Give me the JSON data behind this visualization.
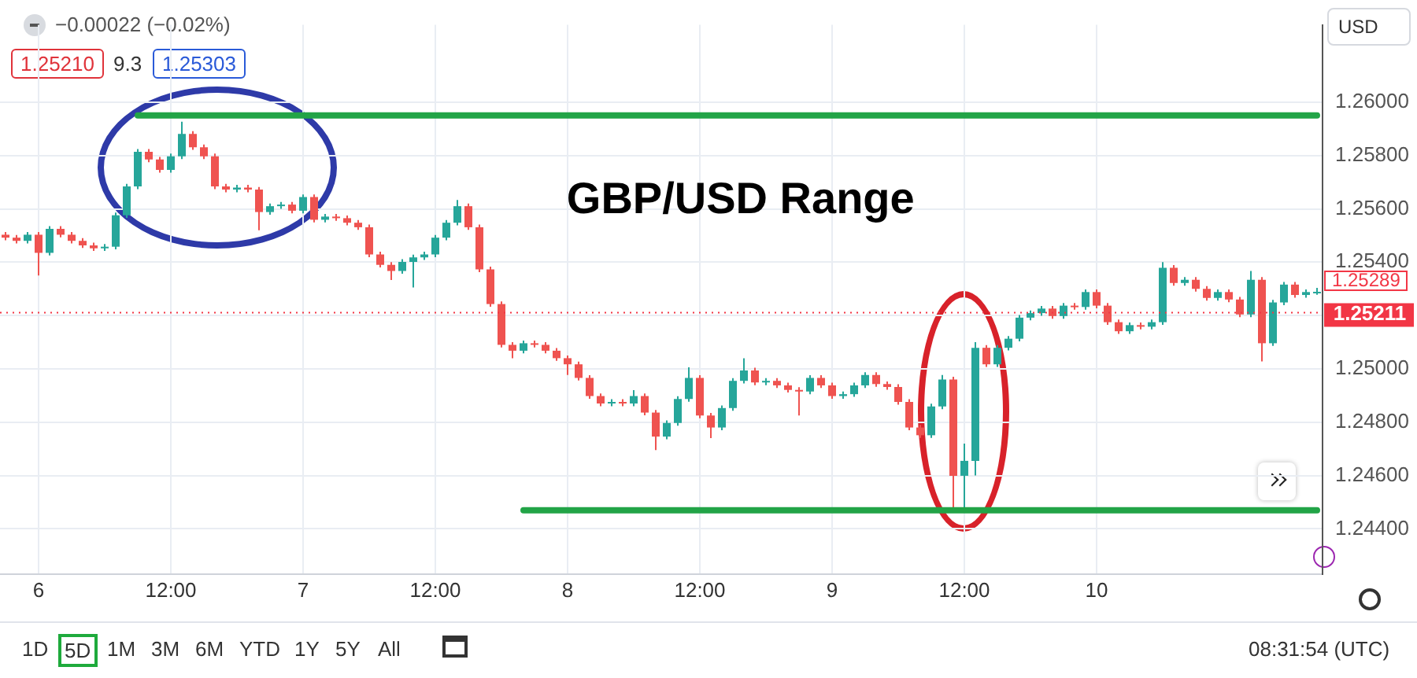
{
  "chart_data": {
    "type": "candlestick",
    "title": "GBP/USD Range",
    "categories": [
      null,
      null,
      null,
      "6",
      null,
      null,
      null,
      null,
      null,
      null,
      null,
      null,
      null,
      null,
      null,
      "12:00",
      null,
      null,
      null,
      null,
      null,
      null,
      null,
      null,
      null,
      null,
      null,
      "7",
      null,
      null,
      null,
      null,
      null,
      null,
      null,
      null,
      null,
      null,
      null,
      "12:00",
      null,
      null,
      null,
      null,
      null,
      null,
      null,
      null,
      null,
      null,
      null,
      "8",
      null,
      null,
      null,
      null,
      null,
      null,
      null,
      null,
      null,
      null,
      null,
      "12:00",
      null,
      null,
      null,
      null,
      null,
      null,
      null,
      null,
      null,
      null,
      null,
      "9",
      null,
      null,
      null,
      null,
      null,
      null,
      null,
      null,
      null,
      null,
      null,
      "12:00",
      null,
      null,
      null,
      null,
      null,
      null,
      null,
      null,
      null,
      null,
      null,
      "10",
      null,
      null,
      null,
      null,
      null,
      null,
      null,
      null,
      null,
      null,
      null,
      null,
      null,
      null,
      null,
      null,
      null,
      null,
      null,
      null
    ],
    "ohlc": [
      [
        1.25503,
        1.25513,
        1.25482,
        1.25492
      ],
      [
        1.25492,
        1.25502,
        1.2547,
        1.2548
      ],
      [
        1.2548,
        1.25513,
        1.2547,
        1.25503
      ],
      [
        1.25503,
        1.25513,
        1.2535,
        1.25435
      ],
      [
        1.25435,
        1.25535,
        1.25425,
        1.25525
      ],
      [
        1.25525,
        1.25535,
        1.25493,
        1.25503
      ],
      [
        1.25503,
        1.25513,
        1.2547,
        1.2548
      ],
      [
        1.2548,
        1.2549,
        1.25453,
        1.25463
      ],
      [
        1.25463,
        1.25473,
        1.25442,
        1.25452
      ],
      [
        1.25452,
        1.25468,
        1.25442,
        1.25458
      ],
      [
        1.25458,
        1.25586,
        1.25448,
        1.25576
      ],
      [
        1.25576,
        1.25694,
        1.25566,
        1.25684
      ],
      [
        1.25684,
        1.25824,
        1.25674,
        1.25814
      ],
      [
        1.25814,
        1.25824,
        1.25775,
        1.25785
      ],
      [
        1.25785,
        1.25795,
        1.25736,
        1.25746
      ],
      [
        1.25746,
        1.25807,
        1.25736,
        1.25797
      ],
      [
        1.25797,
        1.25927,
        1.25787,
        1.25881
      ],
      [
        1.25881,
        1.25891,
        1.25821,
        1.25831
      ],
      [
        1.25831,
        1.25841,
        1.25787,
        1.25797
      ],
      [
        1.25797,
        1.25807,
        1.25674,
        1.25684
      ],
      [
        1.25684,
        1.25694,
        1.25662,
        1.25672
      ],
      [
        1.25672,
        1.2569,
        1.25662,
        1.2568
      ],
      [
        1.2568,
        1.2569,
        1.25662,
        1.25672
      ],
      [
        1.25672,
        1.25682,
        1.2552,
        1.25588
      ],
      [
        1.25588,
        1.2562,
        1.25578,
        1.2561
      ],
      [
        1.2561,
        1.25626,
        1.256,
        1.25616
      ],
      [
        1.25616,
        1.25626,
        1.25583,
        1.25593
      ],
      [
        1.25593,
        1.25654,
        1.25583,
        1.25644
      ],
      [
        1.25644,
        1.25654,
        1.25549,
        1.25559
      ],
      [
        1.25559,
        1.25581,
        1.25549,
        1.25571
      ],
      [
        1.25571,
        1.25581,
        1.25555,
        1.25565
      ],
      [
        1.25565,
        1.25575,
        1.25538,
        1.25548
      ],
      [
        1.25548,
        1.25558,
        1.25521,
        1.25531
      ],
      [
        1.25531,
        1.25541,
        1.25419,
        1.25429
      ],
      [
        1.25429,
        1.25439,
        1.2538,
        1.2539
      ],
      [
        1.2539,
        1.254,
        1.25333,
        1.25367
      ],
      [
        1.25367,
        1.25411,
        1.25357,
        1.25401
      ],
      [
        1.25401,
        1.25428,
        1.25305,
        1.25418
      ],
      [
        1.25418,
        1.25439,
        1.25408,
        1.25429
      ],
      [
        1.25429,
        1.25502,
        1.25419,
        1.25492
      ],
      [
        1.25492,
        1.25558,
        1.25482,
        1.25548
      ],
      [
        1.25548,
        1.25633,
        1.25538,
        1.2561
      ],
      [
        1.2561,
        1.2562,
        1.25521,
        1.25531
      ],
      [
        1.25531,
        1.25541,
        1.25363,
        1.25373
      ],
      [
        1.25373,
        1.25383,
        1.25233,
        1.25243
      ],
      [
        1.25243,
        1.25253,
        1.2508,
        1.2509
      ],
      [
        1.2509,
        1.251,
        1.2504,
        1.25068
      ],
      [
        1.25068,
        1.25106,
        1.25058,
        1.25096
      ],
      [
        1.25096,
        1.25106,
        1.2508,
        1.2509
      ],
      [
        1.2509,
        1.251,
        1.25058,
        1.25068
      ],
      [
        1.25068,
        1.25078,
        1.2503,
        1.2504
      ],
      [
        1.2504,
        1.2505,
        1.24977,
        1.25017
      ],
      [
        1.25017,
        1.25027,
        1.24956,
        1.24966
      ],
      [
        1.24966,
        1.24976,
        1.24888,
        1.24898
      ],
      [
        1.24898,
        1.24908,
        1.2486,
        1.2487
      ],
      [
        1.2487,
        1.24886,
        1.2486,
        1.24876
      ],
      [
        1.24876,
        1.24886,
        1.2486,
        1.2487
      ],
      [
        1.2487,
        1.2492,
        1.2486,
        1.24898
      ],
      [
        1.24898,
        1.24908,
        1.24826,
        1.24836
      ],
      [
        1.24836,
        1.24846,
        1.24695,
        1.24746
      ],
      [
        1.24746,
        1.24807,
        1.24736,
        1.24797
      ],
      [
        1.24797,
        1.24897,
        1.24787,
        1.24887
      ],
      [
        1.24887,
        1.25006,
        1.24877,
        1.24966
      ],
      [
        1.24966,
        1.24976,
        1.24815,
        1.24825
      ],
      [
        1.24825,
        1.24835,
        1.2474,
        1.2478
      ],
      [
        1.2478,
        1.24863,
        1.2477,
        1.24853
      ],
      [
        1.24853,
        1.24965,
        1.24843,
        1.24955
      ],
      [
        1.24955,
        1.2504,
        1.24945,
        1.24994
      ],
      [
        1.24994,
        1.25004,
        1.24939,
        1.24949
      ],
      [
        1.24949,
        1.24965,
        1.24939,
        1.24955
      ],
      [
        1.24955,
        1.24965,
        1.24928,
        1.24938
      ],
      [
        1.24938,
        1.24948,
        1.24911,
        1.24921
      ],
      [
        1.24921,
        1.24931,
        1.24825,
        1.24915
      ],
      [
        1.24915,
        1.24976,
        1.24905,
        1.24966
      ],
      [
        1.24966,
        1.24976,
        1.24928,
        1.24938
      ],
      [
        1.24938,
        1.24948,
        1.24888,
        1.24898
      ],
      [
        1.24898,
        1.24915,
        1.24888,
        1.24905
      ],
      [
        1.24905,
        1.24948,
        1.24895,
        1.24938
      ],
      [
        1.24938,
        1.24987,
        1.24928,
        1.24977
      ],
      [
        1.24977,
        1.24987,
        1.24933,
        1.24943
      ],
      [
        1.24943,
        1.24953,
        1.24922,
        1.24932
      ],
      [
        1.24932,
        1.24942,
        1.24866,
        1.24876
      ],
      [
        1.24876,
        1.24886,
        1.2477,
        1.2478
      ],
      [
        1.2478,
        1.2479,
        1.24741,
        1.24751
      ],
      [
        1.24751,
        1.24869,
        1.24741,
        1.24859
      ],
      [
        1.24859,
        1.24977,
        1.24849,
        1.2496
      ],
      [
        1.2496,
        1.2497,
        1.2448,
        1.24599
      ],
      [
        1.24599,
        1.2472,
        1.2448,
        1.24655
      ],
      [
        1.24655,
        1.251,
        1.246,
        1.25079
      ],
      [
        1.25079,
        1.25089,
        1.25007,
        1.25017
      ],
      [
        1.25017,
        1.25089,
        1.25007,
        1.25079
      ],
      [
        1.25079,
        1.25123,
        1.25069,
        1.25113
      ],
      [
        1.25113,
        1.25202,
        1.25103,
        1.25192
      ],
      [
        1.25192,
        1.25219,
        1.25182,
        1.25209
      ],
      [
        1.25209,
        1.25236,
        1.25199,
        1.25226
      ],
      [
        1.25226,
        1.25236,
        1.25188,
        1.25198
      ],
      [
        1.25198,
        1.25247,
        1.25188,
        1.25237
      ],
      [
        1.25237,
        1.25247,
        1.25222,
        1.25232
      ],
      [
        1.25232,
        1.25298,
        1.25222,
        1.25288
      ],
      [
        1.25288,
        1.25298,
        1.25227,
        1.25237
      ],
      [
        1.25237,
        1.25247,
        1.25165,
        1.25175
      ],
      [
        1.25175,
        1.25185,
        1.25131,
        1.25141
      ],
      [
        1.25141,
        1.25174,
        1.25131,
        1.25164
      ],
      [
        1.25164,
        1.25174,
        1.25148,
        1.25158
      ],
      [
        1.25158,
        1.25185,
        1.25148,
        1.25175
      ],
      [
        1.25175,
        1.254,
        1.25165,
        1.25379
      ],
      [
        1.25379,
        1.25389,
        1.25312,
        1.25322
      ],
      [
        1.25322,
        1.25344,
        1.25312,
        1.25334
      ],
      [
        1.25334,
        1.25344,
        1.2529,
        1.253
      ],
      [
        1.253,
        1.2531,
        1.25256,
        1.25266
      ],
      [
        1.25266,
        1.25298,
        1.25256,
        1.25288
      ],
      [
        1.25288,
        1.25298,
        1.2525,
        1.2526
      ],
      [
        1.2526,
        1.2527,
        1.25194,
        1.25204
      ],
      [
        1.25204,
        1.25367,
        1.25194,
        1.25334
      ],
      [
        1.25334,
        1.25344,
        1.25028,
        1.25096
      ],
      [
        1.25096,
        1.25259,
        1.25086,
        1.25249
      ],
      [
        1.25249,
        1.25326,
        1.25239,
        1.25316
      ],
      [
        1.25316,
        1.25326,
        1.25267,
        1.25277
      ],
      [
        1.25277,
        1.25298,
        1.25267,
        1.25288
      ],
      [
        1.25288,
        1.25304,
        1.25278,
        1.25289
      ]
    ],
    "colors": [
      "#ef5350",
      "#ef5350",
      "#26a69a",
      "#ef5350",
      "#26a69a",
      "#ef5350",
      "#ef5350",
      "#ef5350",
      "#ef5350",
      "#26a69a",
      "#26a69a",
      "#26a69a",
      "#26a69a",
      "#ef5350",
      "#ef5350",
      "#26a69a",
      "#26a69a",
      "#ef5350",
      "#ef5350",
      "#ef5350",
      "#ef5350",
      "#26a69a",
      "#ef5350",
      "#ef5350",
      "#26a69a",
      "#26a69a",
      "#ef5350",
      "#26a69a",
      "#ef5350",
      "#26a69a",
      "#ef5350",
      "#ef5350",
      "#ef5350",
      "#ef5350",
      "#ef5350",
      "#ef5350",
      "#26a69a",
      "#26a69a",
      "#26a69a",
      "#26a69a",
      "#26a69a",
      "#26a69a",
      "#ef5350",
      "#ef5350",
      "#ef5350",
      "#ef5350",
      "#ef5350",
      "#26a69a",
      "#ef5350",
      "#ef5350",
      "#ef5350",
      "#ef5350",
      "#ef5350",
      "#ef5350",
      "#ef5350",
      "#26a69a",
      "#ef5350",
      "#26a69a",
      "#ef5350",
      "#ef5350",
      "#26a69a",
      "#26a69a",
      "#26a69a",
      "#ef5350",
      "#ef5350",
      "#26a69a",
      "#26a69a",
      "#26a69a",
      "#ef5350",
      "#26a69a",
      "#ef5350",
      "#ef5350",
      "#ef5350",
      "#26a69a",
      "#ef5350",
      "#ef5350",
      "#26a69a",
      "#26a69a",
      "#26a69a",
      "#ef5350",
      "#ef5350",
      "#ef5350",
      "#ef5350",
      "#ef5350",
      "#26a69a",
      "#26a69a",
      "#ef5350",
      "#26a69a",
      "#26a69a",
      "#ef5350",
      "#26a69a",
      "#26a69a",
      "#26a69a",
      "#26a69a",
      "#26a69a",
      "#ef5350",
      "#26a69a",
      "#ef5350",
      "#26a69a",
      "#ef5350",
      "#ef5350",
      "#ef5350",
      "#26a69a",
      "#ef5350",
      "#26a69a",
      "#26a69a",
      "#ef5350",
      "#26a69a",
      "#ef5350",
      "#ef5350",
      "#26a69a",
      "#ef5350",
      "#ef5350",
      "#26a69a",
      "#ef5350",
      "#26a69a",
      "#26a69a",
      "#ef5350",
      "#26a69a",
      "#26a69a"
    ],
    "series": [
      {
        "type": "line",
        "color": "#22a447",
        "values": [
          null,
          null,
          null,
          null,
          null,
          null,
          null,
          null,
          null,
          null,
          null,
          null,
          1.2595,
          1.2595,
          1.2595,
          1.2595,
          1.2595,
          1.2595,
          1.2595,
          1.2595,
          1.2595,
          1.2595,
          1.2595,
          1.2595,
          1.2595,
          1.2595,
          1.2595,
          1.2595,
          1.2595,
          1.2595,
          1.2595,
          1.2595,
          1.2595,
          1.2595,
          1.2595,
          1.2595,
          1.2595,
          1.2595,
          1.2595,
          1.2595,
          1.2595,
          1.2595,
          1.2595,
          1.2595,
          1.2595,
          1.2595,
          1.2595,
          1.2595,
          1.2595,
          1.2595,
          1.2595,
          1.2595,
          1.2595,
          1.2595,
          1.2595,
          1.2595,
          1.2595,
          1.2595,
          1.2595,
          1.2595,
          1.2595,
          1.2595,
          1.2595,
          1.2595,
          1.2595,
          1.2595,
          1.2595,
          1.2595,
          1.2595,
          1.2595,
          1.2595,
          1.2595,
          1.2595,
          1.2595,
          1.2595,
          1.2595,
          1.2595,
          1.2595,
          1.2595,
          1.2595,
          1.2595,
          1.2595,
          1.2595,
          1.2595,
          1.2595,
          1.2595,
          1.2595,
          1.2595,
          1.2595,
          1.2595,
          1.2595,
          1.2595,
          1.2595,
          1.2595,
          1.2595,
          1.2595,
          1.2595,
          1.2595,
          1.2595,
          1.2595,
          1.2595,
          1.2595,
          1.2595,
          1.2595,
          1.2595,
          1.2595,
          1.2595,
          1.2595,
          1.2595,
          1.2595,
          1.2595,
          1.2595,
          1.2595,
          1.2595,
          1.2595,
          1.2595,
          1.2595,
          1.2595,
          1.2595,
          1.2595
        ]
      },
      {
        "type": "line",
        "color": "#22a447",
        "values": [
          null,
          null,
          null,
          null,
          null,
          null,
          null,
          null,
          null,
          null,
          null,
          null,
          null,
          null,
          null,
          null,
          null,
          null,
          null,
          null,
          null,
          null,
          null,
          null,
          null,
          null,
          null,
          null,
          null,
          null,
          null,
          null,
          null,
          null,
          null,
          null,
          null,
          null,
          null,
          null,
          null,
          null,
          null,
          null,
          null,
          null,
          null,
          1.2447,
          1.2447,
          1.2447,
          1.2447,
          1.2447,
          1.2447,
          1.2447,
          1.2447,
          1.2447,
          1.2447,
          1.2447,
          1.2447,
          1.2447,
          1.2447,
          1.2447,
          1.2447,
          1.2447,
          1.2447,
          1.2447,
          1.2447,
          1.2447,
          1.2447,
          1.2447,
          1.2447,
          1.2447,
          1.2447,
          1.2447,
          1.2447,
          1.2447,
          1.2447,
          1.2447,
          1.2447,
          1.2447,
          1.2447,
          1.2447,
          1.2447,
          1.2447,
          1.2447,
          1.2447,
          1.2447,
          1.2447,
          1.2447,
          1.2447,
          1.2447,
          1.2447,
          1.2447,
          1.2447,
          1.2447,
          1.2447,
          1.2447,
          1.2447,
          1.2447,
          1.2447,
          1.2447,
          1.2447,
          1.2447,
          1.2447,
          1.2447,
          1.2447,
          1.2447,
          1.2447,
          1.2447,
          1.2447,
          1.2447,
          1.2447,
          1.2447,
          1.2447,
          1.2447,
          1.2447,
          1.2447,
          1.2447,
          1.2447,
          1.2447
        ]
      }
    ],
    "ylim": [
      1.2423,
      1.2629
    ],
    "yticks": [
      {
        "value": 1.244,
        "label": "1.24400"
      },
      {
        "value": 1.246,
        "label": "1.24600"
      },
      {
        "value": 1.248,
        "label": "1.24800"
      },
      {
        "value": 1.25,
        "label": "1.25000"
      },
      {
        "value": 1.252,
        "label": null
      },
      {
        "value": 1.254,
        "label": "1.25400"
      },
      {
        "value": 1.256,
        "label": "1.25600"
      },
      {
        "value": 1.258,
        "label": "1.25800"
      },
      {
        "value": 1.26,
        "label": "1.26000"
      }
    ],
    "ref_lines": [
      {
        "axis": "y",
        "value": 1.25211,
        "label": "1.25211",
        "color": "#f23645",
        "line_style": "dotted"
      }
    ],
    "annotations": [
      "−0.00022 (−0.02%)",
      "1.25210",
      "9.3",
      "1.25303",
      "USD",
      "1D",
      "5D",
      "1M",
      "3M",
      "6M",
      "YTD",
      "1Y",
      "5Y",
      "All",
      "08:31:54 (UTC)",
      "1.25289"
    ],
    "grid": true,
    "legend": false
  }
}
